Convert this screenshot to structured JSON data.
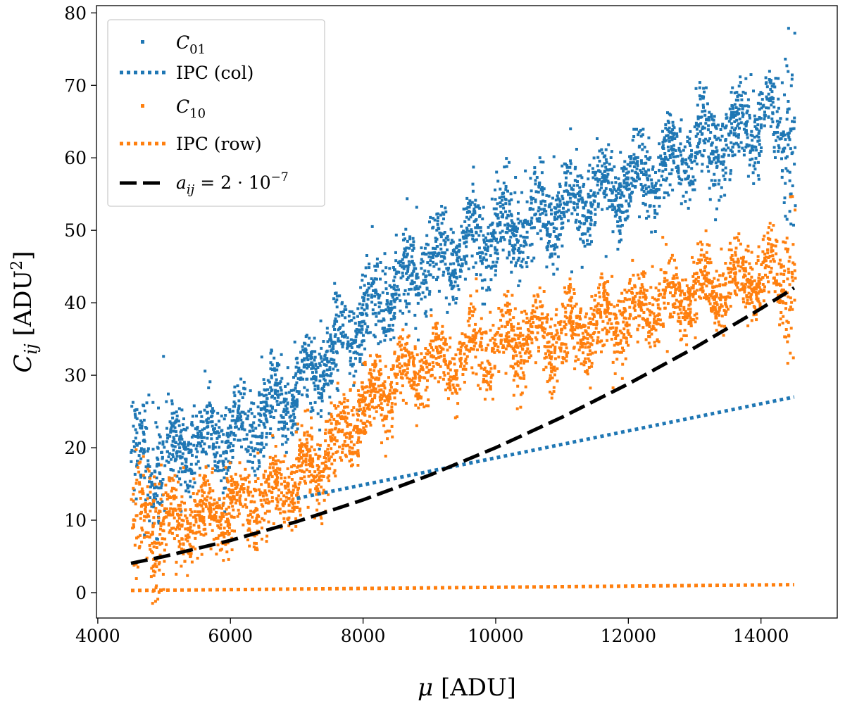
{
  "chart_data": {
    "type": "scatter",
    "title": "",
    "xlabel": "μ [ADU]",
    "ylabel": "C_ij [ADU^2]",
    "xlim": [
      3980,
      15150
    ],
    "ylim": [
      -3.5,
      81
    ],
    "x_ticks": [
      4000,
      6000,
      8000,
      10000,
      12000,
      14000
    ],
    "y_ticks": [
      0,
      10,
      20,
      30,
      40,
      50,
      60,
      70,
      80
    ],
    "grid": false,
    "legend_position": "top-left",
    "colors": {
      "blue": "#1f77b4",
      "orange": "#ff7f0e",
      "black": "#000000"
    },
    "series": [
      {
        "name": "C_01",
        "label_main": "C",
        "label_sub": "01",
        "kind": "scatter",
        "color": "#1f77b4",
        "x_range": [
          4500,
          14520
        ],
        "trend_x": [
          4500,
          5000,
          5500,
          6000,
          6500,
          7000,
          7500,
          8000,
          8500,
          9000,
          9500,
          10000,
          10500,
          11000,
          11500,
          12000,
          12500,
          13000,
          13500,
          14000,
          14500
        ],
        "trend_y": [
          18,
          18.5,
          20.5,
          22,
          24.5,
          28,
          32.5,
          38.5,
          42.5,
          45.5,
          48,
          49.5,
          51,
          53,
          55,
          56.5,
          58.5,
          61,
          63,
          65.5,
          64
        ],
        "spread": 2.8,
        "oscillation_period": 500,
        "oscillation_amplitude": 2.5
      },
      {
        "name": "IPC (col)",
        "kind": "dotted-line",
        "color": "#1f77b4",
        "x": [
          7000,
          14500
        ],
        "y": [
          13,
          27
        ]
      },
      {
        "name": "C_10",
        "label_main": "C",
        "label_sub": "10",
        "kind": "scatter",
        "color": "#ff7f0e",
        "x_range": [
          4500,
          14520
        ],
        "trend_x": [
          4500,
          5000,
          5500,
          6000,
          6500,
          7000,
          7500,
          8000,
          8500,
          9000,
          9500,
          10000,
          10500,
          11000,
          11500,
          12000,
          12500,
          13000,
          13500,
          14000,
          14500
        ],
        "trend_y": [
          9,
          9.5,
          10.5,
          11.5,
          13,
          15.5,
          19.5,
          25.5,
          29.5,
          31.5,
          32.5,
          34,
          35,
          35.5,
          37,
          38.5,
          40,
          41,
          42.5,
          44,
          43
        ],
        "spread": 2.6,
        "oscillation_period": 500,
        "oscillation_amplitude": 2.3
      },
      {
        "name": "IPC (row)",
        "kind": "dotted-line",
        "color": "#ff7f0e",
        "x": [
          4500,
          14500
        ],
        "y": [
          0.3,
          1.1
        ]
      },
      {
        "name": "a_ij = 2 · 10^-7",
        "label_main": "a",
        "label_sub": "ij",
        "label_rest": " = 2 · 10",
        "label_sup": "−7",
        "kind": "dashed-line",
        "color": "#000000",
        "x": [
          4500,
          5000,
          6000,
          7000,
          8000,
          9000,
          10000,
          11000,
          12000,
          13000,
          14000,
          14500
        ],
        "y": [
          4.05,
          5.0,
          7.2,
          9.8,
          12.8,
          16.2,
          20.0,
          24.2,
          28.8,
          33.8,
          39.2,
          42.05
        ]
      }
    ]
  }
}
